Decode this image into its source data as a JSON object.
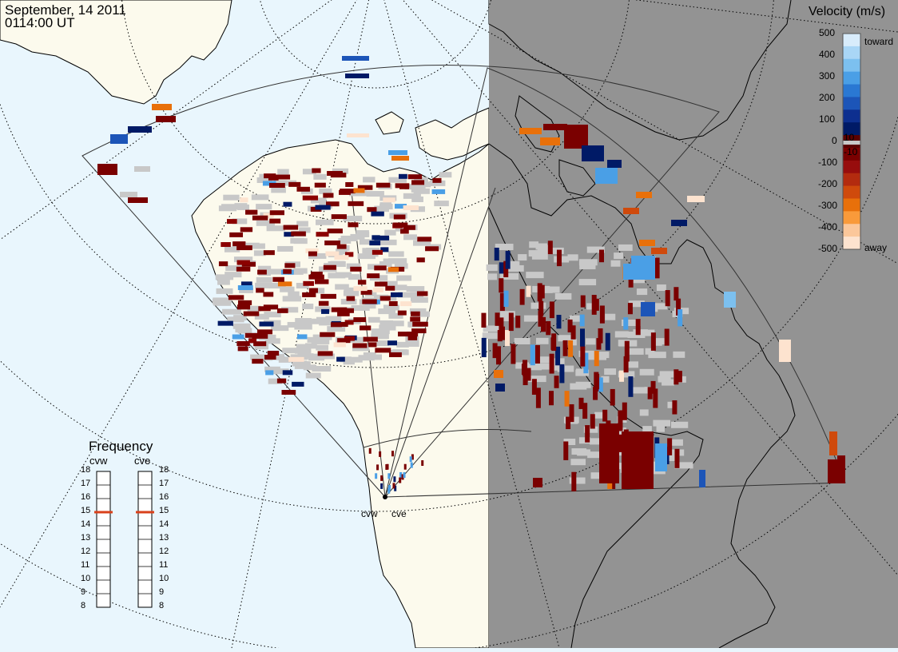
{
  "header": {
    "date": "September, 14 2011",
    "time": "0114:00 UT"
  },
  "colorbar": {
    "title": "Velocity (m/s)",
    "toward_label": "toward",
    "away_label": "away",
    "ticks": [
      "500",
      "400",
      "300",
      "200",
      "100",
      "10",
      "0",
      "-10",
      "-100",
      "-200",
      "-300",
      "-400",
      "-500"
    ],
    "colors_top_to_bottom": [
      "#d8ecfb",
      "#a9d6f6",
      "#7cc0ef",
      "#4a9fe6",
      "#2a78d3",
      "#1c55b8",
      "#0d2f8f",
      "#001a66",
      "#5a0000",
      "#7a0000",
      "#970d0d",
      "#b32b0f",
      "#cf4a0c",
      "#e8700a",
      "#f99a3a",
      "#fbc79a",
      "#fde3cf"
    ],
    "ground_scatter_color": "#c8c8c8"
  },
  "frequency": {
    "title": "Frequency",
    "radars": [
      "cvw",
      "cve"
    ],
    "ticks": [
      "18",
      "17",
      "16",
      "15",
      "14",
      "13",
      "12",
      "11",
      "10",
      "9",
      "8"
    ],
    "unit_values_mhz": [
      15,
      15
    ],
    "marker_color": "#d9411b"
  },
  "sites": {
    "west": "cvw",
    "east": "cve"
  },
  "map": {
    "ocean_color": "#e9f6fd",
    "land_day_color": "#fcfaed",
    "night_color": "#939393",
    "terminator_note": ""
  }
}
